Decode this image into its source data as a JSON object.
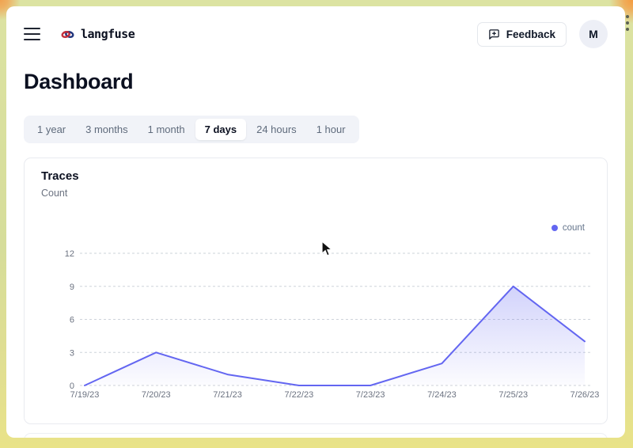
{
  "topbar": {
    "brand": "langfuse",
    "feedback_label": "Feedback",
    "avatar_initial": "M"
  },
  "page": {
    "title": "Dashboard"
  },
  "time_tabs": {
    "items": [
      {
        "label": "1 year"
      },
      {
        "label": "3 months"
      },
      {
        "label": "1 month"
      },
      {
        "label": "7 days"
      },
      {
        "label": "24 hours"
      },
      {
        "label": "1 hour"
      }
    ],
    "active": "7 days"
  },
  "card": {
    "title": "Traces",
    "subtitle": "Count"
  },
  "chart_data": {
    "type": "area",
    "title": "Traces",
    "subtitle": "Count",
    "x": [
      "7/19/23",
      "7/20/23",
      "7/21/23",
      "7/22/23",
      "7/23/23",
      "7/24/23",
      "7/25/23",
      "7/26/23"
    ],
    "series": [
      {
        "name": "count",
        "values": [
          0,
          3,
          1,
          0,
          0,
          2,
          9,
          4
        ]
      }
    ],
    "ylim": [
      0,
      12
    ],
    "yticks": [
      0,
      3,
      6,
      9,
      12
    ],
    "grid": "horizontal-dashed",
    "legend_position": "top-right",
    "line_color": "#6366f1",
    "fill_color": "#6366f1"
  },
  "colors": {
    "accent": "#6366f1",
    "frame_green": "#d6dd9a",
    "frame_orange": "#f0a24f",
    "tab_bg": "#f1f3f8",
    "muted_text": "#6b7280"
  }
}
